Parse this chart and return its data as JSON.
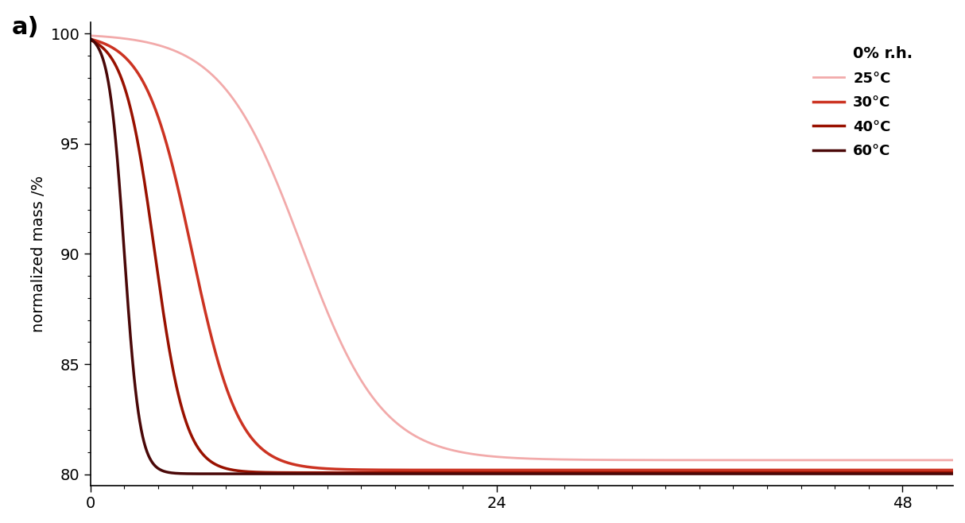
{
  "title": "a)",
  "ylabel": "normalized mass /%",
  "xlabel": "",
  "xlim": [
    0,
    51
  ],
  "ylim": [
    79.5,
    100.5
  ],
  "xticks": [
    0,
    24,
    48
  ],
  "yticks": [
    80,
    85,
    90,
    95,
    100
  ],
  "annotation": "0% r.h.",
  "background_color": "#ffffff",
  "series": [
    {
      "label": "25°C",
      "color": "#f2aaaa",
      "lw": 2.0,
      "midpoint": 12.5,
      "plateau": 80.65,
      "steepness": 0.42
    },
    {
      "label": "30°C",
      "color": "#cc3322",
      "lw": 2.5,
      "midpoint": 6.0,
      "plateau": 80.2,
      "steepness": 0.72
    },
    {
      "label": "40°C",
      "color": "#991100",
      "lw": 2.5,
      "midpoint": 3.8,
      "plateau": 80.08,
      "steepness": 1.1
    },
    {
      "label": "60°C",
      "color": "#4a0808",
      "lw": 2.5,
      "midpoint": 2.0,
      "plateau": 80.03,
      "steepness": 2.2
    }
  ]
}
